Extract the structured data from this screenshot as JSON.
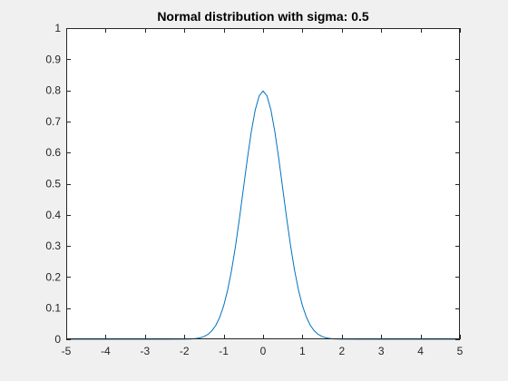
{
  "figure": {
    "background": "#f0f0f0",
    "axes_background": "#ffffff",
    "axes_color": "#262626",
    "line_color": "#0072bd"
  },
  "chart_data": {
    "type": "line",
    "title": "Normal distribution with sigma: 0.5",
    "xlabel": "",
    "ylabel": "",
    "xlim": [
      -5,
      5
    ],
    "ylim": [
      0,
      1
    ],
    "xticks": [
      -5,
      -4,
      -3,
      -2,
      -1,
      0,
      1,
      2,
      3,
      4,
      5
    ],
    "xtick_labels": [
      "-5",
      "-4",
      "-3",
      "-2",
      "-1",
      "0",
      "1",
      "2",
      "3",
      "4",
      "5"
    ],
    "yticks": [
      0,
      0.1,
      0.2,
      0.3,
      0.4,
      0.5,
      0.6,
      0.7,
      0.8,
      0.9,
      1
    ],
    "ytick_labels": [
      "0",
      "0.1",
      "0.2",
      "0.3",
      "0.4",
      "0.5",
      "0.6",
      "0.7",
      "0.8",
      "0.9",
      "1"
    ],
    "grid": false,
    "box": true,
    "legend": "none",
    "series": [
      {
        "x": [
          -5,
          -4.5,
          -4,
          -3.5,
          -3,
          -2.5,
          -2,
          -1.9,
          -1.8,
          -1.7,
          -1.6,
          -1.5,
          -1.4,
          -1.3,
          -1.2,
          -1.1,
          -1,
          -0.9,
          -0.8,
          -0.7,
          -0.6,
          -0.5,
          -0.4,
          -0.3,
          -0.2,
          -0.1,
          0,
          0.1,
          0.2,
          0.3,
          0.4,
          0.5,
          0.6,
          0.7,
          0.8,
          0.9,
          1,
          1.1,
          1.2,
          1.3,
          1.4,
          1.5,
          1.6,
          1.7,
          1.8,
          1.9,
          2,
          2.5,
          3,
          3.5,
          4,
          4.5,
          5
        ],
        "y": [
          0,
          0,
          0,
          0,
          0,
          0,
          0.0003,
          0.0006,
          0.0012,
          0.0025,
          0.0048,
          0.0089,
          0.0158,
          0.0272,
          0.0448,
          0.071,
          0.108,
          0.1579,
          0.2218,
          0.2995,
          0.3884,
          0.4839,
          0.5794,
          0.6664,
          0.7365,
          0.7821,
          0.7979,
          0.7821,
          0.7365,
          0.6664,
          0.5794,
          0.4839,
          0.3884,
          0.2995,
          0.2218,
          0.1579,
          0.108,
          0.071,
          0.0448,
          0.0272,
          0.0158,
          0.0089,
          0.0048,
          0.0025,
          0.0012,
          0.0006,
          0.0003,
          0,
          0,
          0,
          0,
          0,
          0
        ]
      }
    ]
  }
}
